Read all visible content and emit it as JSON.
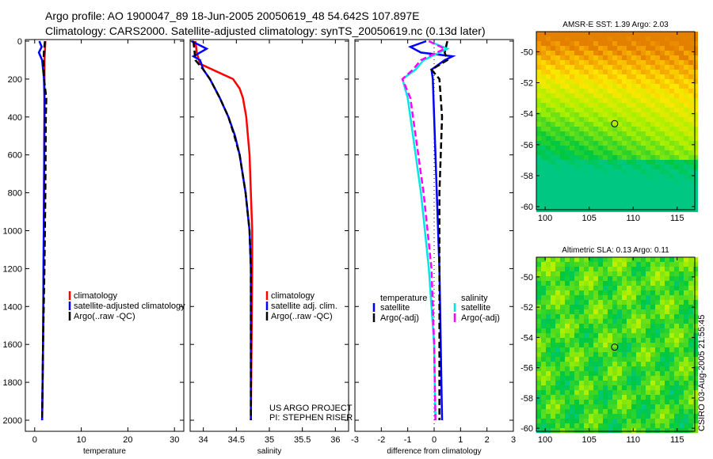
{
  "title": {
    "line1": "Argo profile: AO 1900047_89 18-Jun-2005 20050619_48 54.642S 107.897E",
    "line2": "Climatology: CARS2000. Satellite-adjusted climatology: synTS_20050619.nc (0.13d later)"
  },
  "side_label": "CSIRO 03-Aug-2005 21:55:45",
  "colors": {
    "climatology": "#ff0000",
    "satellite": "#0000ff",
    "argo": "#000000",
    "sal_diff": "#00e5e5",
    "sal_argo": "#ff00ff"
  },
  "chart_data": [
    {
      "type": "line",
      "xlabel": "temperature",
      "ylabel": "",
      "xlim": [
        -2,
        32
      ],
      "ylim": [
        2000,
        0
      ],
      "xticks": [
        0,
        10,
        20,
        30
      ],
      "yticks": [
        0,
        200,
        400,
        600,
        800,
        1000,
        1200,
        1400,
        1600,
        1800,
        2000
      ],
      "legend": [
        "climatology",
        "satellite-adjusted climatology",
        "Argo(..raw -QC)"
      ],
      "series": [
        {
          "name": "climatology",
          "color": "#ff0000",
          "depth": [
            0,
            50,
            100,
            200,
            400,
            800,
            1200,
            1600,
            2000
          ],
          "values": [
            2.3,
            2.2,
            2.1,
            2.1,
            2.1,
            2.0,
            1.9,
            1.8,
            1.6
          ]
        },
        {
          "name": "satellite-adjusted climatology",
          "color": "#0000ff",
          "depth": [
            0,
            30,
            60,
            100,
            150,
            200,
            300,
            400,
            800,
            1200,
            1600,
            2000
          ],
          "values": [
            1.0,
            1.5,
            0.9,
            1.6,
            1.8,
            2.0,
            2.1,
            2.1,
            2.0,
            1.9,
            1.8,
            1.6
          ]
        },
        {
          "name": "Argo(..raw -QC)",
          "color": "#000000",
          "dash": true,
          "depth": [
            0,
            50,
            100,
            200,
            300,
            400,
            800,
            1200,
            1600,
            2000
          ],
          "values": [
            2.2,
            2.0,
            1.9,
            2.0,
            2.5,
            2.4,
            2.3,
            2.1,
            1.8,
            1.6
          ]
        }
      ]
    },
    {
      "type": "line",
      "xlabel": "salinity",
      "xlim": [
        33.8,
        36.2
      ],
      "ylim": [
        2000,
        0
      ],
      "xticks": [
        34,
        34.5,
        35,
        35.5,
        36
      ],
      "tick_labels": [
        "34",
        "34.5",
        "35",
        "35.5",
        "36"
      ],
      "legend": [
        "climatology",
        "satellite adj. clim.",
        "Argo(..raw -QC)"
      ],
      "annotation": [
        "US ARGO PROJECT",
        "PI: STEPHEN RISER"
      ],
      "series": [
        {
          "name": "climatology",
          "color": "#ff0000",
          "depth": [
            0,
            60,
            120,
            160,
            200,
            250,
            300,
            400,
            600,
            800,
            1000,
            1200,
            1600,
            2000
          ],
          "values": [
            33.88,
            33.9,
            33.95,
            34.2,
            34.45,
            34.55,
            34.6,
            34.65,
            34.7,
            34.72,
            34.74,
            34.74,
            34.73,
            34.72
          ]
        },
        {
          "name": "satellite adj. clim.",
          "color": "#0000ff",
          "depth": [
            0,
            40,
            80,
            100,
            150,
            200,
            300,
            400,
            500,
            600,
            800,
            1000,
            1200,
            1600,
            2000
          ],
          "values": [
            33.82,
            34.05,
            33.85,
            33.95,
            34.0,
            34.1,
            34.25,
            34.38,
            34.48,
            34.55,
            34.64,
            34.7,
            34.72,
            34.72,
            34.72
          ]
        },
        {
          "name": "Argo(..raw -QC)",
          "color": "#000000",
          "dash": true,
          "depth": [
            0,
            100,
            150,
            200,
            300,
            400,
            500,
            600,
            800,
            1000,
            1200,
            1600,
            2000
          ],
          "values": [
            33.85,
            33.88,
            34.0,
            34.1,
            34.25,
            34.38,
            34.47,
            34.55,
            34.64,
            34.7,
            34.72,
            34.72,
            34.72
          ]
        }
      ]
    },
    {
      "type": "line",
      "xlabel": "difference from climatology",
      "xlim": [
        -3,
        3
      ],
      "ylim": [
        2000,
        0
      ],
      "xticks": [
        -3,
        -2,
        -1,
        0,
        1,
        2,
        3
      ],
      "legend_left": {
        "title": "temperature",
        "items": [
          "satellite",
          "Argo(-adj)"
        ]
      },
      "legend_right": {
        "title": "salinity",
        "items": [
          "satellite",
          "Argo(-adj)"
        ]
      },
      "series": [
        {
          "name": "temperature satellite",
          "color": "#0000ff",
          "depth": [
            0,
            30,
            60,
            80,
            100,
            150,
            200,
            400,
            800,
            1200,
            1600,
            2000
          ],
          "values": [
            -0.3,
            -0.9,
            -0.5,
            0.7,
            0.4,
            -0.1,
            -0.05,
            0.0,
            0.1,
            0.2,
            0.25,
            0.3
          ]
        },
        {
          "name": "temperature Argo(-adj)",
          "color": "#000000",
          "dash": true,
          "depth": [
            0,
            60,
            100,
            150,
            200,
            400,
            800,
            1200,
            1600,
            2000
          ],
          "values": [
            0.5,
            0.4,
            0.5,
            -0.1,
            0.2,
            0.3,
            0.2,
            0.2,
            0.2,
            0.2
          ]
        },
        {
          "name": "salinity satellite",
          "color": "#00e5e5",
          "depth": [
            0,
            40,
            100,
            150,
            200,
            300,
            500,
            800,
            1200,
            1600,
            2000
          ],
          "values": [
            -0.2,
            0.5,
            -0.4,
            -0.7,
            -1.2,
            -1.0,
            -0.8,
            -0.5,
            -0.2,
            0.0,
            0.05
          ]
        },
        {
          "name": "salinity Argo(-adj)",
          "color": "#ff00ff",
          "dash": true,
          "depth": [
            0,
            40,
            100,
            150,
            200,
            300,
            500,
            800,
            1200,
            1600,
            2000
          ],
          "values": [
            -0.2,
            0.4,
            -0.5,
            -0.8,
            -1.2,
            -0.9,
            -0.7,
            -0.4,
            -0.1,
            0.0,
            0.05
          ]
        }
      ]
    },
    {
      "type": "heatmap",
      "title": "AMSR-E SST: 1.39 Argo: 2.03",
      "xlim": [
        99,
        117
      ],
      "ylim": [
        -60.2,
        -48.7
      ],
      "xticks": [
        100,
        105,
        110,
        115
      ],
      "yticks": [
        -50,
        -52,
        -54,
        -56,
        -58,
        -60
      ],
      "marker": [
        107.897,
        -54.642
      ]
    },
    {
      "type": "heatmap",
      "title": "Altimetric SLA: 0.13 Argo: 0.11",
      "xlim": [
        99,
        117
      ],
      "ylim": [
        -60.2,
        -48.7
      ],
      "xticks": [
        100,
        105,
        110,
        115
      ],
      "yticks": [
        -50,
        -52,
        -54,
        -56,
        -58,
        -60
      ],
      "marker": [
        107.897,
        -54.642
      ]
    }
  ]
}
